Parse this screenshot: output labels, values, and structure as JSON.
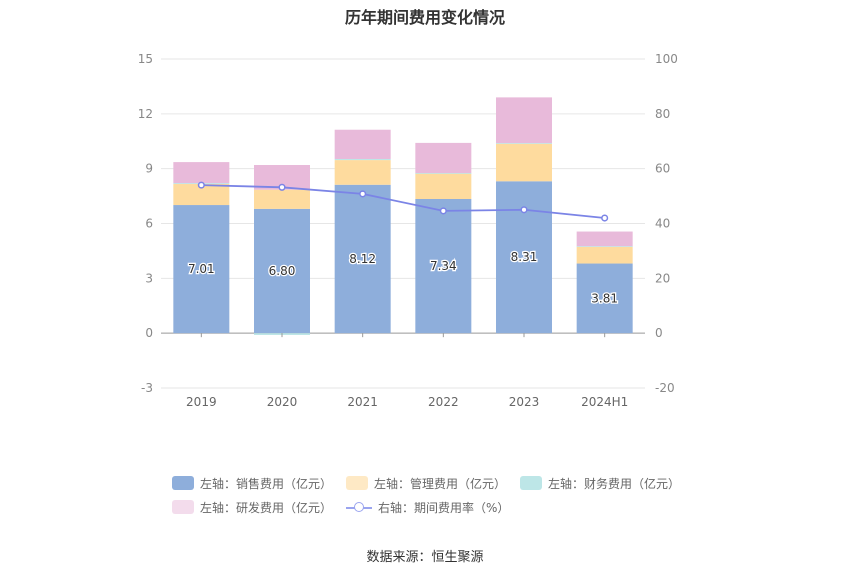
{
  "chart_data": {
    "type": "bar",
    "title": "历年期间费用变化情况",
    "categories": [
      "2019",
      "2020",
      "2021",
      "2022",
      "2023",
      "2024H1"
    ],
    "stacked": true,
    "y_left": {
      "ylim": [
        -3,
        15
      ],
      "ticks": [
        -3,
        0,
        3,
        6,
        9,
        12,
        15
      ]
    },
    "y_right": {
      "ylim": [
        -20,
        100
      ],
      "ticks": [
        -20,
        0,
        20,
        40,
        60,
        80,
        100
      ]
    },
    "grid": true,
    "legend_position": "bottom",
    "series": [
      {
        "name": "左轴：销售费用（亿元）",
        "axis": "left",
        "color": "#8eaedb",
        "values": [
          7.01,
          6.8,
          8.12,
          7.34,
          8.31,
          3.81
        ],
        "show_labels": true
      },
      {
        "name": "左轴：管理费用（亿元）",
        "axis": "left",
        "color": "#fedb9e",
        "values": [
          1.15,
          1.05,
          1.35,
          1.4,
          2.06,
          0.93
        ]
      },
      {
        "name": "左轴：财务费用（亿元）",
        "axis": "left",
        "color": "#bde6e7",
        "values": [
          0.05,
          -0.1,
          0.06,
          0.02,
          0.03,
          0.02
        ]
      },
      {
        "name": "左轴：研发费用（亿元）",
        "axis": "left",
        "color": "#e8bada",
        "values": [
          1.15,
          1.35,
          1.6,
          1.65,
          2.5,
          0.8
        ]
      },
      {
        "name": "右轴：期间费用率（%）",
        "axis": "right",
        "type": "line",
        "color": "#7b84e6",
        "values": [
          54.0,
          53.2,
          50.8,
          44.6,
          45.0,
          42.0
        ]
      }
    ]
  },
  "source_text": "数据来源：恒生聚源"
}
